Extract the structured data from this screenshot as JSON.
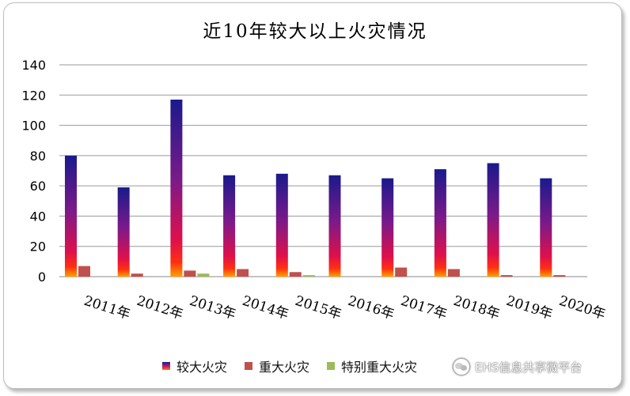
{
  "chart_data": {
    "type": "bar",
    "title": "近10年较大以上火灾情况",
    "categories": [
      "2011年",
      "2012年",
      "2013年",
      "2014年",
      "2015年",
      "2016年",
      "2017年",
      "2018年",
      "2019年",
      "2020年"
    ],
    "series": [
      {
        "name": "较大火灾",
        "values": [
          80,
          59,
          117,
          67,
          68,
          67,
          65,
          71,
          75,
          65
        ]
      },
      {
        "name": "重大火灾",
        "values": [
          7,
          2,
          4,
          5,
          3,
          0,
          6,
          5,
          1,
          1
        ]
      },
      {
        "name": "特别重大火灾",
        "values": [
          0,
          0,
          2,
          0,
          1,
          0,
          0,
          0,
          0,
          0
        ]
      }
    ],
    "ylim": [
      0,
      140
    ],
    "yticks": [
      0,
      20,
      40,
      60,
      80,
      100,
      120,
      140
    ],
    "grid": true,
    "legend_position": "bottom",
    "colors": {
      "series1_top": "#1a1a8c",
      "series1_mid": "#c41a6e",
      "series1_bottom": "#ff7a00",
      "series2": "#c0504d",
      "series3": "#9bbb59"
    }
  },
  "watermark": {
    "text": "EHS信息共享微平台",
    "icon": "wechat-icon"
  }
}
